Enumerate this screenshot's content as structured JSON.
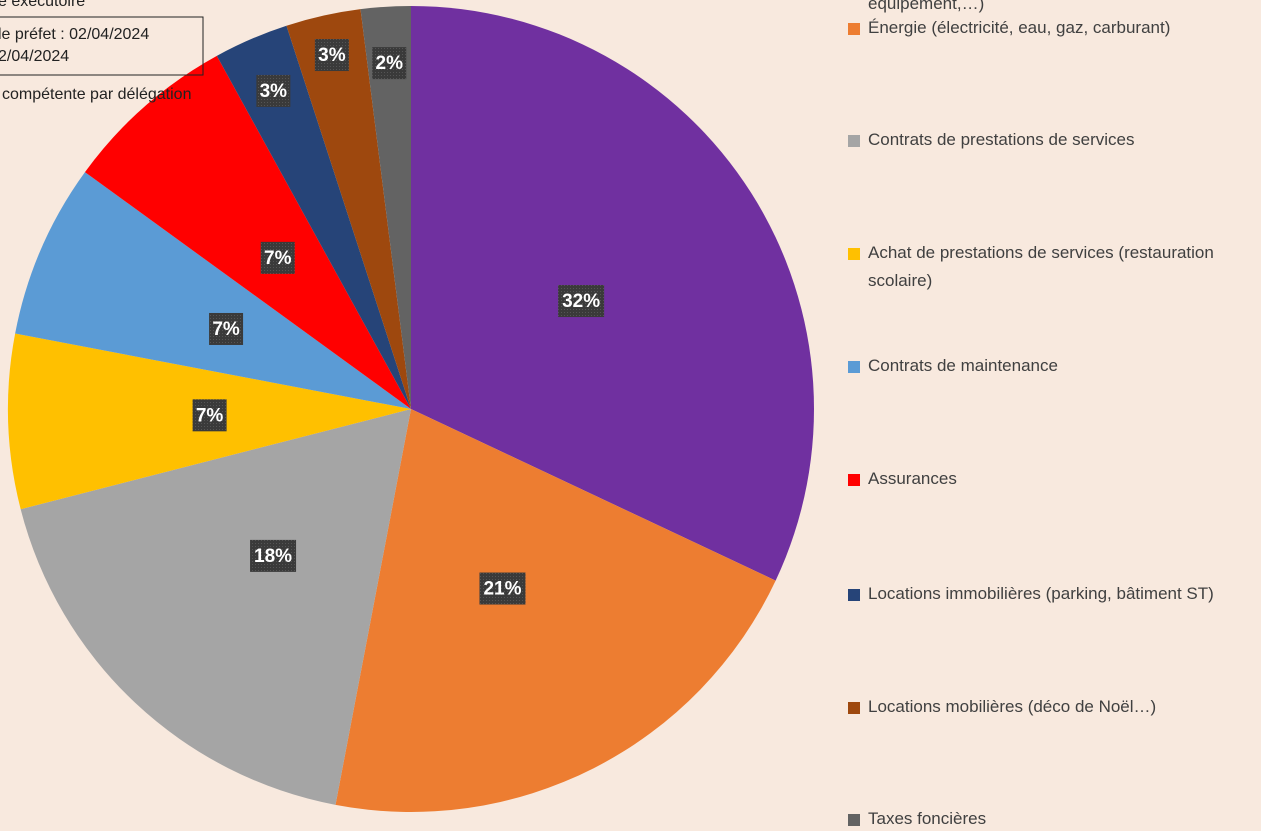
{
  "stamp": {
    "lines": [
      "e exécutoire",
      "le préfet : 02/04/2024",
      "2/04/2024",
      "compétente par délégation"
    ]
  },
  "chart_data": {
    "type": "pie",
    "categories": [
      "équipement,…)",
      "Énergie (électricité, eau, gaz, carburant)",
      "Contrats de prestations de services",
      "Achat de prestations de services (restauration scolaire)",
      "Contrats de maintenance",
      "Assurances",
      "Locations immobilières (parking, bâtiment ST)",
      "Locations mobilières (déco de Noël…)",
      "Taxes foncières"
    ],
    "values": [
      32,
      21,
      18,
      7,
      7,
      7,
      3,
      3,
      2
    ],
    "value_labels": [
      "32%",
      "21%",
      "18%",
      "7%",
      "7%",
      "7%",
      "3%",
      "3%",
      "2%"
    ],
    "colors": [
      "#7030a0",
      "#ed7d31",
      "#a5a5a5",
      "#ffc000",
      "#5b9bd5",
      "#ff0000",
      "#264478",
      "#9e480e",
      "#636363"
    ],
    "legend": "right"
  }
}
